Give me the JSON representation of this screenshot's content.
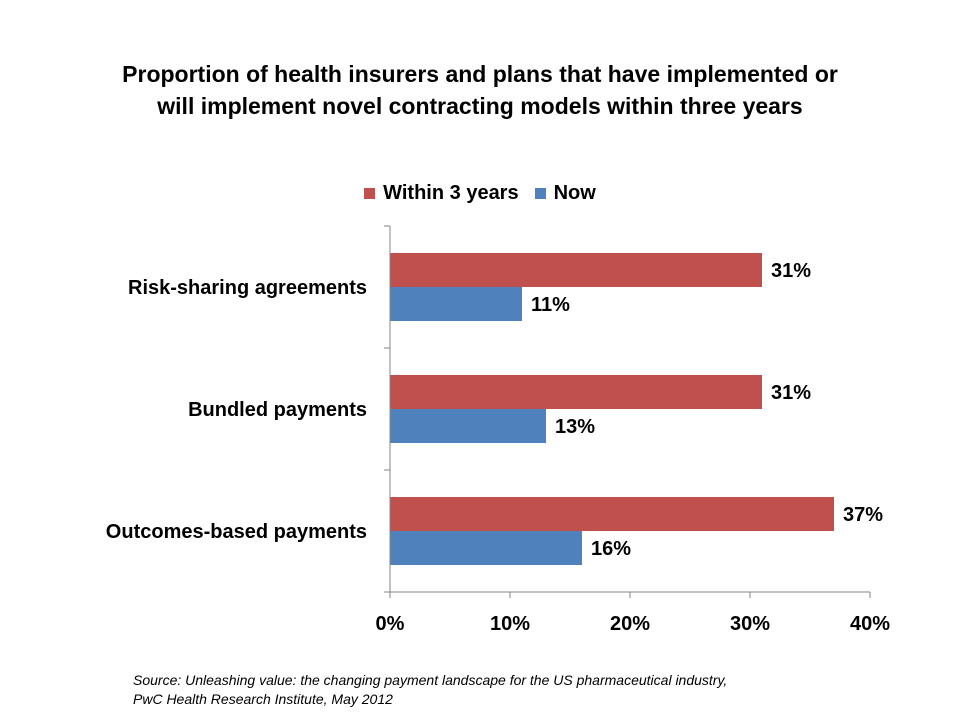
{
  "chart_data": {
    "type": "bar",
    "orientation": "horizontal",
    "title_lines": [
      "Proportion of health insurers and plans that have implemented or",
      "will implement novel contracting models within three years"
    ],
    "categories": [
      "Risk-sharing agreements",
      "Bundled payments",
      "Outcomes-based payments"
    ],
    "series": [
      {
        "name": "Within 3 years",
        "color": "#c0504d",
        "values": [
          31,
          31,
          37
        ],
        "labels": [
          "31%",
          "31%",
          "37%"
        ]
      },
      {
        "name": "Now",
        "color": "#4f81bd",
        "values": [
          11,
          13,
          16
        ],
        "labels": [
          "11%",
          "13%",
          "16%"
        ]
      }
    ],
    "xlim": [
      0,
      40
    ],
    "x_ticks": [
      0,
      10,
      20,
      30,
      40
    ],
    "x_tick_labels": [
      "0%",
      "10%",
      "20%",
      "30%",
      "40%"
    ],
    "grid": false,
    "legend_position": "top"
  },
  "source": {
    "line1": "Source: Unleashing value:  the changing payment landscape for the US pharmaceutical industry,",
    "line2": "PwC Health Research Institute, May 2012"
  }
}
